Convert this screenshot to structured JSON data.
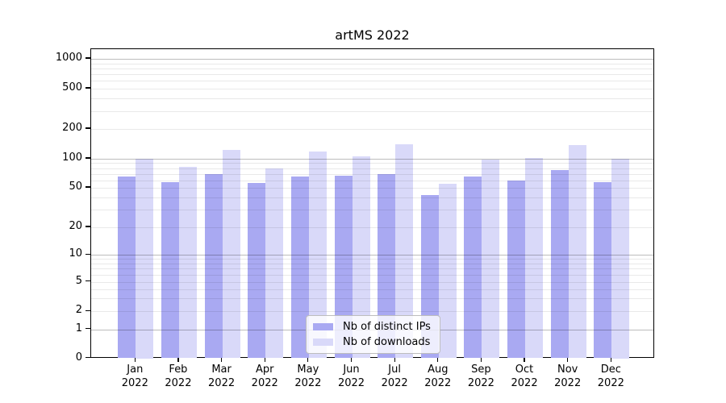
{
  "chart_data": {
    "type": "bar",
    "title": "artMS 2022",
    "xlabel": "",
    "ylabel": "",
    "yscale": "symlog",
    "ylim": [
      0,
      1300
    ],
    "y_ticks": [
      0,
      1,
      2,
      5,
      10,
      20,
      50,
      100,
      200,
      500,
      1000
    ],
    "grid": "horizontal major (powers of 10) + faint log minors",
    "legend_position": "lower center",
    "categories": [
      "Jan",
      "Feb",
      "Mar",
      "Apr",
      "May",
      "Jun",
      "Jul",
      "Aug",
      "Sep",
      "Oct",
      "Nov",
      "Dec"
    ],
    "year_label": "2022",
    "series": [
      {
        "name": "Nb of distinct IPs",
        "color": "#a9a9f2",
        "values": [
          65,
          57,
          70,
          56,
          66,
          67,
          70,
          42,
          66,
          59,
          76,
          57
        ]
      },
      {
        "name": "Nb of downloads",
        "color": "#d9d9f9",
        "values": [
          100,
          83,
          124,
          79,
          119,
          106,
          140,
          55,
          98,
          101,
          138,
          100
        ]
      }
    ]
  }
}
